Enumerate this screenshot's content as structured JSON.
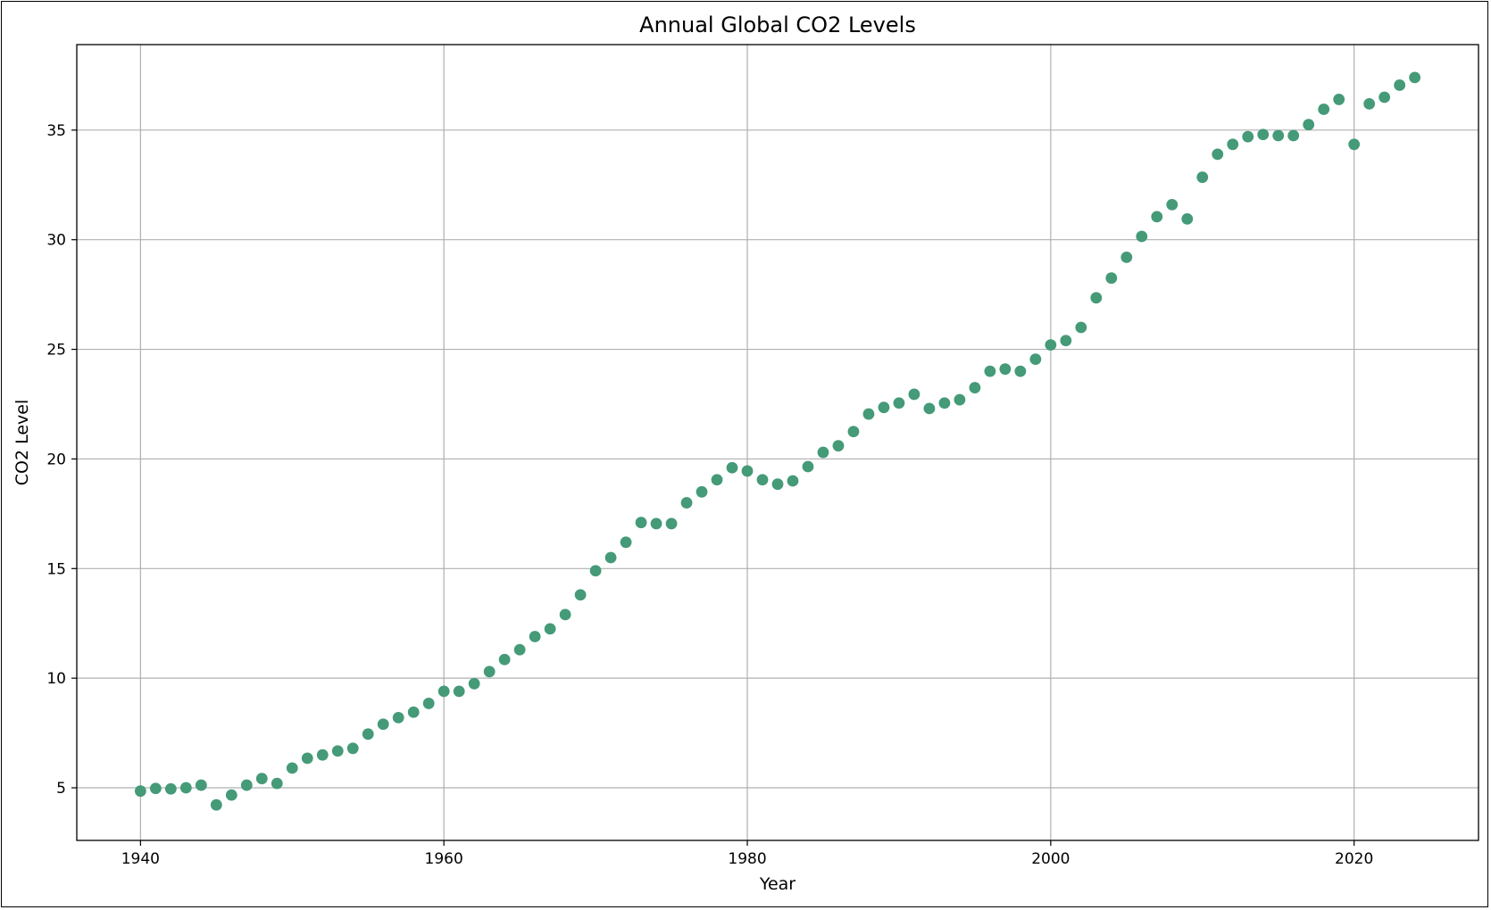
{
  "chart_data": {
    "type": "scatter",
    "title": "Annual Global CO2 Levels",
    "xlabel": "Year",
    "ylabel": "CO2 Level",
    "xlim": [
      1935.8,
      2028.2
    ],
    "ylim": [
      2.6,
      38.9
    ],
    "xticks": [
      1940,
      1960,
      1980,
      2000,
      2020
    ],
    "yticks": [
      5,
      10,
      15,
      20,
      25,
      30,
      35
    ],
    "grid": true,
    "marker_color": "#459a78",
    "series": [
      {
        "x": [
          1940,
          1941,
          1942,
          1943,
          1944,
          1945,
          1946,
          1947,
          1948,
          1949,
          1950,
          1951,
          1952,
          1953,
          1954,
          1955,
          1956,
          1957,
          1958,
          1959,
          1960,
          1961,
          1962,
          1963,
          1964,
          1965,
          1966,
          1967,
          1968,
          1969,
          1970,
          1971,
          1972,
          1973,
          1974,
          1975,
          1976,
          1977,
          1978,
          1979,
          1980,
          1981,
          1982,
          1983,
          1984,
          1985,
          1986,
          1987,
          1988,
          1989,
          1990,
          1991,
          1992,
          1993,
          1994,
          1995,
          1996,
          1997,
          1998,
          1999,
          2000,
          2001,
          2002,
          2003,
          2004,
          2005,
          2006,
          2007,
          2008,
          2009,
          2010,
          2011,
          2012,
          2013,
          2014,
          2015,
          2016,
          2017,
          2018,
          2019,
          2020,
          2021,
          2022,
          2023,
          2024
        ],
        "y": [
          4.85,
          4.97,
          4.95,
          5.0,
          5.12,
          4.22,
          4.67,
          5.12,
          5.42,
          5.2,
          5.9,
          6.35,
          6.5,
          6.68,
          6.8,
          7.45,
          7.9,
          8.2,
          8.45,
          8.85,
          9.4,
          9.4,
          9.75,
          10.3,
          10.85,
          11.3,
          11.9,
          12.25,
          12.9,
          13.8,
          14.9,
          15.5,
          16.2,
          17.1,
          17.05,
          17.05,
          18.0,
          18.5,
          19.05,
          19.6,
          19.45,
          19.05,
          18.85,
          19.0,
          19.65,
          20.3,
          20.6,
          21.25,
          22.05,
          22.35,
          22.55,
          22.95,
          22.3,
          22.55,
          22.7,
          23.25,
          24.0,
          24.1,
          24.0,
          24.55,
          25.2,
          25.4,
          26.0,
          27.35,
          28.25,
          29.2,
          30.15,
          31.05,
          31.6,
          30.95,
          32.85,
          33.9,
          34.35,
          34.7,
          34.8,
          34.75,
          34.75,
          35.25,
          35.95,
          36.4,
          34.35,
          36.2,
          36.5,
          37.05,
          37.4
        ]
      }
    ]
  }
}
